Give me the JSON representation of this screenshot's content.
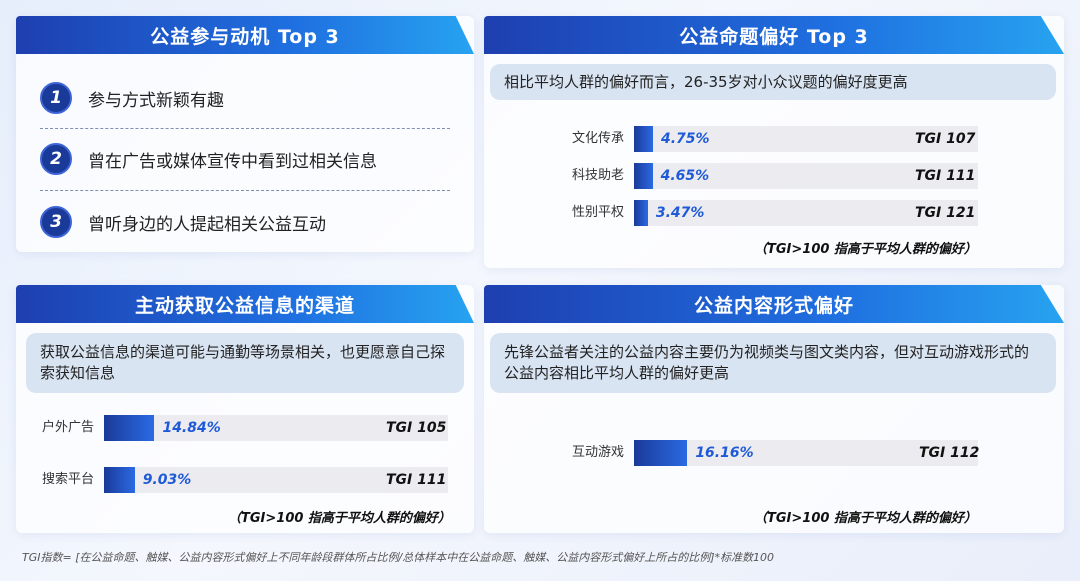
{
  "motivation": {
    "title": "公益参与动机 Top 3",
    "items": [
      {
        "num": "1",
        "text": "参与方式新颖有趣"
      },
      {
        "num": "2",
        "text": "曾在广告或媒体宣传中看到过相关信息"
      },
      {
        "num": "3",
        "text": "曾听身边的人提起相关公益互动"
      }
    ]
  },
  "topics": {
    "title": "公益命题偏好 Top 3",
    "callout": "相比平均人群的偏好而言，26-35岁对小众议题的偏好度更高",
    "note": "（TGI>100 指高于平均人群的偏好）",
    "rows": [
      {
        "label": "文化传承",
        "value": "4.75%",
        "tgi": "TGI 107"
      },
      {
        "label": "科技助老",
        "value": "4.65%",
        "tgi": "TGI 111"
      },
      {
        "label": "性别平权",
        "value": "3.47%",
        "tgi": "TGI 121"
      }
    ]
  },
  "channels": {
    "title": "主动获取公益信息的渠道",
    "callout": "获取公益信息的渠道可能与通勤等场景相关，也更愿意自己探索获知信息",
    "note": "（TGI>100 指高于平均人群的偏好）",
    "rows": [
      {
        "label": "户外广告",
        "value": "14.84%",
        "tgi": "TGI 105"
      },
      {
        "label": "搜索平台",
        "value": "9.03%",
        "tgi": "TGI 111"
      }
    ]
  },
  "content_format": {
    "title": "公益内容形式偏好",
    "callout": "先锋公益者关注的公益内容主要仍为视频类与图文类内容，但对互动游戏形式的公益内容相比平均人群的偏好更高",
    "note": "（TGI>100 指高于平均人群的偏好）",
    "rows": [
      {
        "label": "互动游戏",
        "value": "16.16%",
        "tgi": "TGI 112"
      }
    ]
  },
  "footnote": "TGI指数= [在公益命题、触媒、公益内容形式偏好上不同年龄段群体所占比例/总体样本中在公益命题、触媒、公益内容形式偏好上所占的比例]*标准数100",
  "colors": {
    "bar_start": "#1a3a99",
    "bar_end": "#2b6ae3",
    "value_text": "#1f5ad6",
    "header": "#1f6fe0"
  },
  "chart_data": [
    {
      "type": "bar",
      "title": "公益命题偏好 Top 3",
      "categories": [
        "文化传承",
        "科技助老",
        "性别平权"
      ],
      "values": [
        4.75,
        4.65,
        3.47
      ],
      "tgi": [
        107,
        111,
        121
      ],
      "unit": "%"
    },
    {
      "type": "bar",
      "title": "主动获取公益信息的渠道",
      "categories": [
        "户外广告",
        "搜索平台"
      ],
      "values": [
        14.84,
        9.03
      ],
      "tgi": [
        105,
        111
      ],
      "unit": "%"
    },
    {
      "type": "bar",
      "title": "公益内容形式偏好",
      "categories": [
        "互动游戏"
      ],
      "values": [
        16.16
      ],
      "tgi": [
        112
      ],
      "unit": "%"
    }
  ]
}
